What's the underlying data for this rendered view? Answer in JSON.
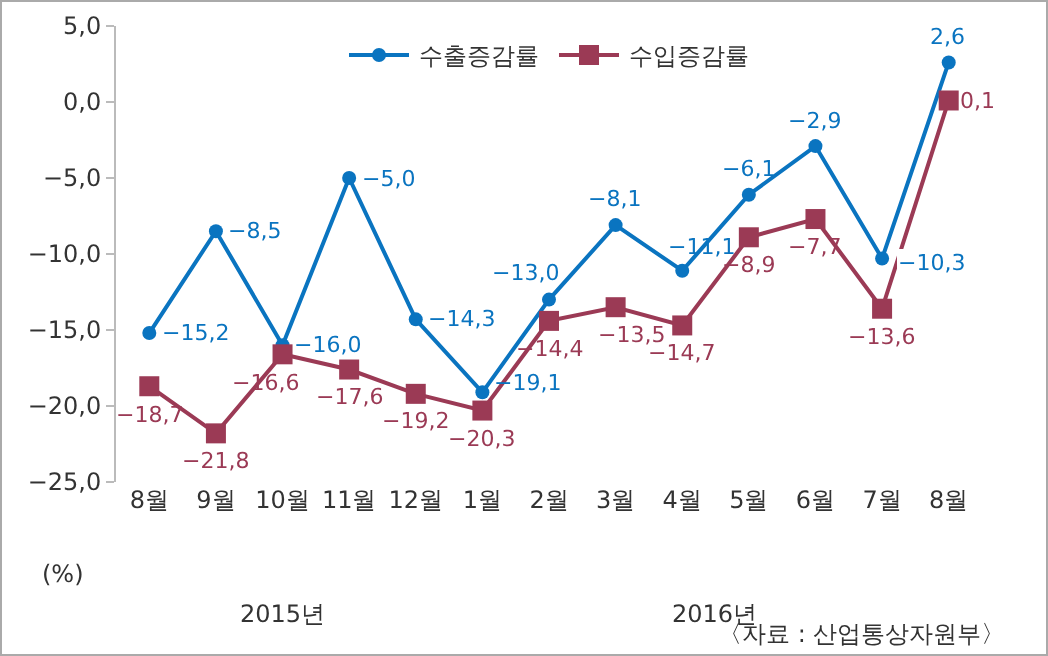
{
  "chart_data": {
    "type": "line",
    "categories": [
      "8월",
      "9월",
      "10월",
      "11월",
      "12월",
      "1월",
      "2월",
      "3월",
      "4월",
      "5월",
      "6월",
      "7월",
      "8월"
    ],
    "series": [
      {
        "name": "수출증감률",
        "color": "#0a74c0",
        "marker": "circle",
        "values": [
          -15.2,
          -8.5,
          -16.0,
          -5.0,
          -14.3,
          -19.1,
          -13.0,
          -8.1,
          -11.1,
          -6.1,
          -2.9,
          -10.3,
          2.6
        ],
        "value_labels": [
          "−15,2",
          "−8,5",
          "−16,0",
          "−5,0",
          "−14,3",
          "−19,1",
          "−13,0",
          "−8,1",
          "−11,1",
          "−6,1",
          "−2,9",
          "−10,3",
          "2,6"
        ]
      },
      {
        "name": "수입증감률",
        "color": "#9b3a55",
        "marker": "square",
        "values": [
          -18.7,
          -21.8,
          -16.6,
          -17.6,
          -19.2,
          -20.3,
          -14.4,
          -13.5,
          -14.7,
          -8.9,
          -7.7,
          -13.6,
          0.1
        ],
        "value_labels": [
          "−18,7",
          "−21,8",
          "−16,6",
          "−17,6",
          "−19,2",
          "−20,3",
          "−14,4",
          "−13,5",
          "−14,7",
          "−8,9",
          "−7,7",
          "−13,6",
          "0,1"
        ]
      }
    ],
    "ylim": [
      -25,
      5
    ],
    "yticks": [
      {
        "value": 5,
        "label": "5,0"
      },
      {
        "value": 0,
        "label": "0,0"
      },
      {
        "value": -5,
        "label": "−5,0"
      },
      {
        "value": -10,
        "label": "−10,0"
      },
      {
        "value": -15,
        "label": "−15,0"
      },
      {
        "value": -20,
        "label": "−20,0"
      },
      {
        "value": -25,
        "label": "−25,0"
      }
    ],
    "grid": false,
    "legend": "top",
    "annotations": [
      "(%)",
      "2015년",
      "2016년",
      "〈자료 : 산업통상자원부〉"
    ]
  }
}
